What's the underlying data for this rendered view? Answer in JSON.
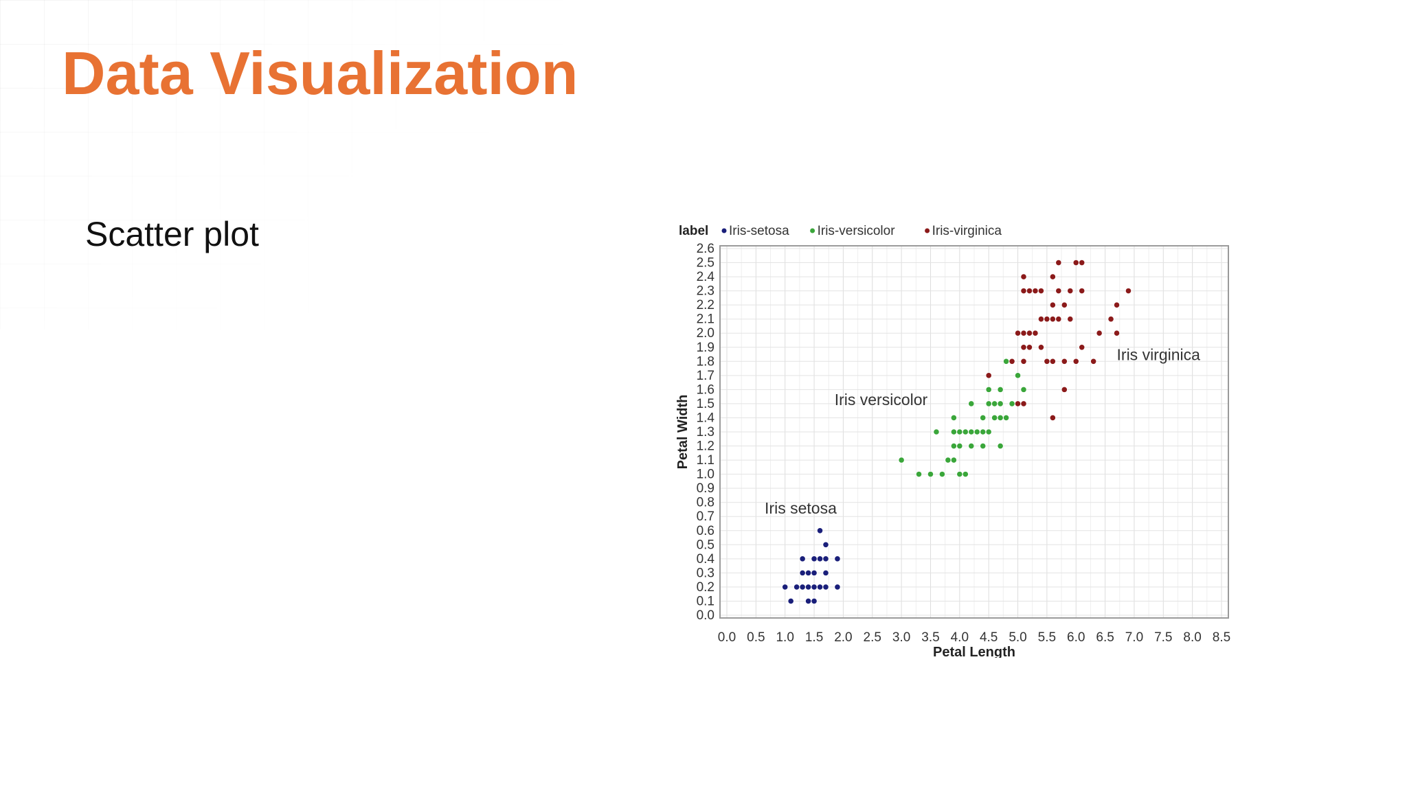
{
  "slide": {
    "title": "Data Visualization",
    "bullet": "Scatter plot"
  },
  "chart_data": {
    "type": "scatter",
    "xlabel": "Petal Length",
    "ylabel": "Petal Width",
    "xlim": [
      0,
      8.5
    ],
    "ylim": [
      0,
      2.6
    ],
    "x_ticks": [
      "0.0",
      "0.5",
      "1.0",
      "1.5",
      "2.0",
      "2.5",
      "3.0",
      "3.5",
      "4.0",
      "4.5",
      "5.0",
      "5.5",
      "6.0",
      "6.5",
      "7.0",
      "7.5",
      "8.0",
      "8.5"
    ],
    "y_ticks": [
      "0.0",
      "0.1",
      "0.2",
      "0.3",
      "0.4",
      "0.5",
      "0.6",
      "0.7",
      "0.8",
      "0.9",
      "1.0",
      "1.1",
      "1.2",
      "1.3",
      "1.4",
      "1.5",
      "1.6",
      "1.7",
      "1.8",
      "1.9",
      "2.0",
      "2.1",
      "2.2",
      "2.3",
      "2.4",
      "2.5",
      "2.6"
    ],
    "grid": true,
    "legend_title": "label",
    "legend_position": "top-left",
    "annotations": [
      {
        "text": "Iris setosa",
        "x": 0.65,
        "y": 0.72
      },
      {
        "text": "Iris versicolor",
        "x": 1.85,
        "y": 1.49
      },
      {
        "text": "Iris virginica",
        "x": 6.7,
        "y": 1.81
      }
    ],
    "series": [
      {
        "name": "Iris-setosa",
        "color": "#1a1f7a",
        "points": [
          [
            1.6,
            0.6
          ],
          [
            1.7,
            0.5
          ],
          [
            1.3,
            0.4
          ],
          [
            1.5,
            0.4
          ],
          [
            1.6,
            0.4
          ],
          [
            1.7,
            0.4
          ],
          [
            1.9,
            0.4
          ],
          [
            1.3,
            0.3
          ],
          [
            1.4,
            0.3
          ],
          [
            1.5,
            0.3
          ],
          [
            1.7,
            0.3
          ],
          [
            1.0,
            0.2
          ],
          [
            1.2,
            0.2
          ],
          [
            1.3,
            0.2
          ],
          [
            1.4,
            0.2
          ],
          [
            1.5,
            0.2
          ],
          [
            1.6,
            0.2
          ],
          [
            1.7,
            0.2
          ],
          [
            1.9,
            0.2
          ],
          [
            1.1,
            0.1
          ],
          [
            1.4,
            0.1
          ],
          [
            1.5,
            0.1
          ]
        ]
      },
      {
        "name": "Iris-versicolor",
        "color": "#3aa63a",
        "points": [
          [
            4.8,
            1.8
          ],
          [
            5.0,
            1.7
          ],
          [
            4.5,
            1.6
          ],
          [
            4.7,
            1.6
          ],
          [
            5.1,
            1.6
          ],
          [
            4.2,
            1.5
          ],
          [
            4.5,
            1.5
          ],
          [
            4.6,
            1.5
          ],
          [
            4.7,
            1.5
          ],
          [
            4.9,
            1.5
          ],
          [
            3.9,
            1.4
          ],
          [
            4.4,
            1.4
          ],
          [
            4.6,
            1.4
          ],
          [
            4.7,
            1.4
          ],
          [
            4.8,
            1.4
          ],
          [
            3.6,
            1.3
          ],
          [
            3.9,
            1.3
          ],
          [
            4.0,
            1.3
          ],
          [
            4.1,
            1.3
          ],
          [
            4.2,
            1.3
          ],
          [
            4.3,
            1.3
          ],
          [
            4.4,
            1.3
          ],
          [
            4.5,
            1.3
          ],
          [
            3.9,
            1.2
          ],
          [
            4.0,
            1.2
          ],
          [
            4.2,
            1.2
          ],
          [
            4.4,
            1.2
          ],
          [
            4.7,
            1.2
          ],
          [
            3.0,
            1.1
          ],
          [
            3.8,
            1.1
          ],
          [
            3.9,
            1.1
          ],
          [
            3.3,
            1.0
          ],
          [
            3.5,
            1.0
          ],
          [
            3.7,
            1.0
          ],
          [
            4.0,
            1.0
          ],
          [
            4.1,
            1.0
          ]
        ]
      },
      {
        "name": "Iris-virginica",
        "color": "#8b1a1a",
        "points": [
          [
            5.7,
            2.5
          ],
          [
            6.0,
            2.5
          ],
          [
            6.1,
            2.5
          ],
          [
            5.1,
            2.4
          ],
          [
            5.6,
            2.4
          ],
          [
            5.1,
            2.3
          ],
          [
            5.2,
            2.3
          ],
          [
            5.3,
            2.3
          ],
          [
            5.4,
            2.3
          ],
          [
            5.7,
            2.3
          ],
          [
            5.9,
            2.3
          ],
          [
            6.1,
            2.3
          ],
          [
            6.9,
            2.3
          ],
          [
            5.6,
            2.2
          ],
          [
            5.8,
            2.2
          ],
          [
            6.7,
            2.2
          ],
          [
            5.4,
            2.1
          ],
          [
            5.5,
            2.1
          ],
          [
            5.6,
            2.1
          ],
          [
            5.7,
            2.1
          ],
          [
            5.9,
            2.1
          ],
          [
            6.6,
            2.1
          ],
          [
            5.0,
            2.0
          ],
          [
            5.1,
            2.0
          ],
          [
            5.2,
            2.0
          ],
          [
            5.3,
            2.0
          ],
          [
            6.4,
            2.0
          ],
          [
            6.7,
            2.0
          ],
          [
            5.1,
            1.9
          ],
          [
            5.2,
            1.9
          ],
          [
            5.4,
            1.9
          ],
          [
            6.1,
            1.9
          ],
          [
            4.9,
            1.8
          ],
          [
            5.1,
            1.8
          ],
          [
            5.5,
            1.8
          ],
          [
            5.6,
            1.8
          ],
          [
            5.8,
            1.8
          ],
          [
            6.0,
            1.8
          ],
          [
            6.3,
            1.8
          ],
          [
            4.5,
            1.7
          ],
          [
            5.8,
            1.6
          ],
          [
            5.0,
            1.5
          ],
          [
            5.1,
            1.5
          ],
          [
            5.6,
            1.4
          ]
        ]
      }
    ]
  }
}
